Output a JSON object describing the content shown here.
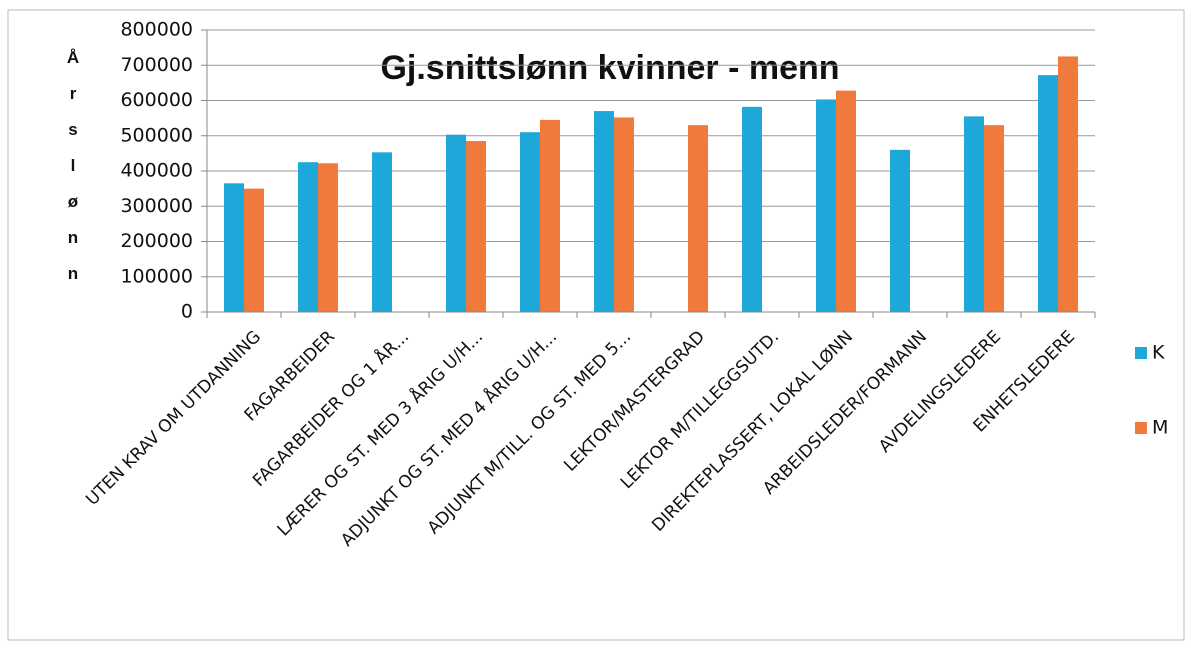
{
  "chart_data": {
    "type": "bar",
    "title": "Gj.snittslønn kvinner - menn",
    "y_axis_label": "Årslønn",
    "categories": [
      "UTEN KRAV OM UTDANNING",
      "FAGARBEIDER",
      "FAGARBEIDER OG 1 ÅR...",
      "LÆRER OG ST. MED 3 ÅRIG U/H...",
      "ADJUNKT OG ST. MED 4 ÅRIG U/H...",
      "ADJUNKT M/TILL. OG ST. MED 5...",
      "LEKTOR/MASTERGRAD",
      "LEKTOR M/TILLEGGSUTD.",
      "DIREKTEPLASSERT, LOKAL LØNN",
      "ARBEIDSLEDER/FORMANN",
      "AVDELINGSLEDERE",
      "ENHETSLEDERE"
    ],
    "series": [
      {
        "name": "K",
        "color": "#1ea7d9",
        "values": [
          365000,
          425000,
          453000,
          503000,
          510000,
          570000,
          null,
          582000,
          603000,
          460000,
          555000,
          672000
        ]
      },
      {
        "name": "M",
        "color": "#f07a3c",
        "values": [
          350000,
          422000,
          null,
          485000,
          545000,
          552000,
          530000,
          null,
          628000,
          null,
          530000,
          725000
        ]
      }
    ],
    "ylim": [
      0,
      800000
    ],
    "yticks": [
      0,
      100000,
      200000,
      300000,
      400000,
      500000,
      600000,
      700000,
      800000
    ],
    "grid": true,
    "legend": "right"
  }
}
